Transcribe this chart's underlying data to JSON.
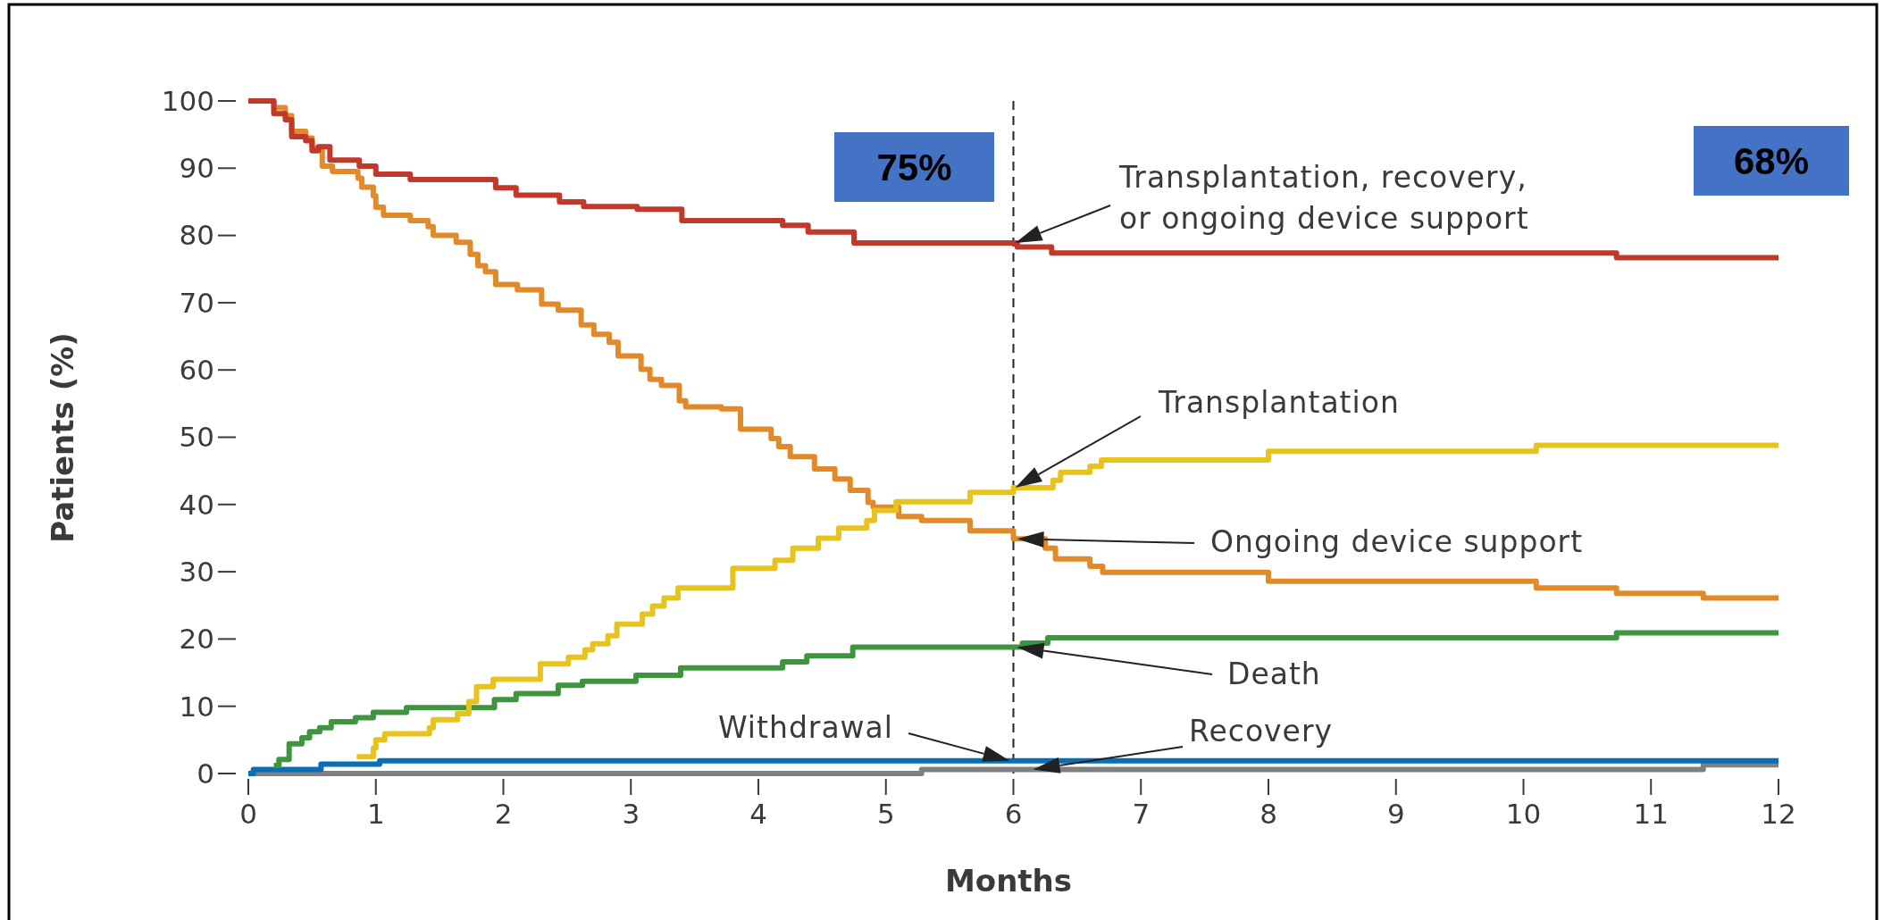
{
  "chart_data": {
    "type": "step",
    "xlabel": "Months",
    "ylabel": "Patients (%)",
    "xlim": [
      0,
      12
    ],
    "xticks": [
      0,
      1,
      2,
      3,
      4,
      5,
      6,
      7,
      8,
      9,
      10,
      11,
      12
    ],
    "ylim": [
      0,
      100
    ],
    "yticks": [
      0,
      10,
      20,
      30,
      40,
      50,
      60,
      70,
      80,
      90,
      100
    ],
    "series": [
      {
        "name": "Transplantation, recovery, or ongoing device support",
        "color": "#c0392b",
        "x": [
          0,
          0.2,
          0.29,
          0.34,
          0.45,
          0.5,
          0.55,
          0.64,
          0.87,
          1.0,
          1.27,
          1.94,
          2.1,
          2.44,
          2.63,
          3.05,
          3.4,
          4.19,
          4.39,
          4.75,
          6.03,
          6.3,
          10.73,
          12
        ],
        "values": [
          100,
          98.1,
          97.2,
          94.7,
          94.1,
          92.6,
          93.2,
          91.2,
          90.3,
          89.1,
          88.3,
          87.1,
          86,
          85,
          84.3,
          83.9,
          82.2,
          81.5,
          80.5,
          78.9,
          78.3,
          77.4,
          76.7,
          76.7
        ]
      },
      {
        "name": "Transplantation",
        "color": "#e6c31e",
        "x": [
          0.85,
          0.98,
          1.0,
          1.07,
          1.42,
          1.45,
          1.64,
          1.73,
          1.79,
          1.92,
          2.29,
          2.51,
          2.64,
          2.7,
          2.82,
          2.89,
          3.09,
          3.17,
          3.26,
          3.37,
          3.8,
          4.13,
          4.27,
          4.47,
          4.63,
          4.85,
          4.91,
          5.08,
          5.66,
          6.0,
          6.31,
          6.37,
          6.6,
          6.69,
          8.0,
          10.1,
          12
        ],
        "values": [
          2.5,
          3.8,
          5.0,
          5.9,
          6.8,
          8.0,
          8.9,
          10.7,
          12.9,
          14.0,
          16.3,
          17.3,
          18.4,
          19.3,
          20.5,
          22.2,
          23.7,
          24.9,
          26.1,
          27.6,
          30.5,
          31.7,
          33.5,
          35.0,
          36.5,
          37.6,
          39.1,
          40.4,
          41.8,
          42.5,
          43.6,
          44.8,
          45.7,
          46.6,
          47.9,
          48.8,
          48.8
        ]
      },
      {
        "name": "Ongoing device support",
        "color": "#e08a2a",
        "x": [
          0,
          0.2,
          0.29,
          0.34,
          0.45,
          0.5,
          0.58,
          0.66,
          0.86,
          0.89,
          0.98,
          1.0,
          1.06,
          1.27,
          1.41,
          1.45,
          1.63,
          1.74,
          1.8,
          1.86,
          1.94,
          2.11,
          2.3,
          2.43,
          2.61,
          2.71,
          2.83,
          2.9,
          3.08,
          3.15,
          3.24,
          3.38,
          3.43,
          3.71,
          3.86,
          4.1,
          4.16,
          4.25,
          4.44,
          4.6,
          4.72,
          4.86,
          4.9,
          5.1,
          5.28,
          5.66,
          6.0,
          6.25,
          6.33,
          6.6,
          6.7,
          8.0,
          10.1,
          10.73,
          11.41,
          12
        ],
        "values": [
          100,
          99,
          97.8,
          95.5,
          94.5,
          93,
          90.3,
          89.5,
          88.5,
          87.2,
          85.9,
          84.2,
          83,
          82.2,
          81.3,
          80,
          79,
          77.2,
          75.5,
          74.6,
          72.7,
          71.9,
          69.8,
          68.9,
          66.7,
          65.3,
          64.1,
          62.1,
          60.1,
          58.6,
          57.7,
          55.4,
          54.5,
          54.2,
          51.2,
          49.8,
          48.6,
          47.1,
          45.3,
          43.8,
          42.1,
          40.3,
          39.6,
          38.2,
          37.6,
          36.1,
          34.9,
          33.5,
          31.9,
          30.8,
          29.9,
          28.6,
          27.6,
          26.8,
          26.1,
          26.1
        ]
      },
      {
        "name": "Death",
        "color": "#3f943f",
        "x": [
          0.2,
          0.24,
          0.32,
          0.42,
          0.48,
          0.56,
          0.65,
          0.84,
          0.98,
          1.24,
          1.93,
          2.1,
          2.43,
          2.62,
          3.04,
          3.39,
          4.19,
          4.38,
          4.74,
          6.07,
          6.27,
          10.73,
          12
        ],
        "values": [
          1.2,
          2.1,
          4.4,
          5.3,
          6.2,
          6.8,
          7.7,
          8.3,
          9.1,
          9.8,
          11.0,
          11.9,
          13.1,
          13.7,
          14.6,
          15.7,
          16.6,
          17.5,
          18.8,
          19.4,
          20.2,
          20.9,
          20.9
        ]
      },
      {
        "name": "Withdrawal",
        "color": "#0a6eb4",
        "x": [
          0,
          0.04,
          0.57,
          1.03,
          12
        ],
        "values": [
          0,
          0.6,
          1.4,
          1.9,
          1.9
        ]
      },
      {
        "name": "Recovery",
        "color": "#808080",
        "x": [
          0,
          5.28,
          11.41,
          12
        ],
        "values": [
          0,
          0.6,
          1.3,
          1.3
        ]
      }
    ],
    "ref_lines": [
      {
        "axis": "x",
        "value": 6,
        "color": "#222222",
        "line_style": "dashed"
      }
    ],
    "annotations": [
      "75%",
      "68%"
    ]
  }
}
